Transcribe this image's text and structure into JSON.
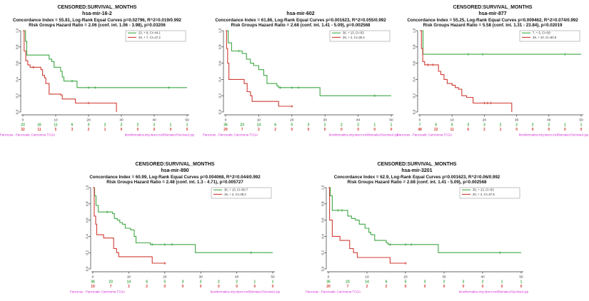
{
  "figure_name": "kaplan-meier-survival-panels",
  "colors": {
    "green": "#3fa845",
    "red": "#cf3d33",
    "magenta": "#d42ad4",
    "axis": "#333333",
    "legend_border": "#999999",
    "title_text": "#111111"
  },
  "footer": {
    "left": "Pancreas - Pancreatic Carcinoma TCGA",
    "right": "bioinformatica.mty.itesm.mx/Biomatec/SurvivaX.jsp"
  },
  "chart_data": [
    {
      "type": "line",
      "title_lines": [
        "CENSORED:SURVIVAL_MONTHS",
        "hsa-mir-16-2",
        "Concordance Index = 55.81, Log-Rank Equal Curves p=0.02796, R^2=0.019/0.992",
        "Risk Groups Hazard Ratio = 2.06 (conf. int. 1.06 - 3.98), p=0.03206"
      ],
      "xlabel": "",
      "ylabel": "",
      "xlim": [
        0,
        50
      ],
      "ylim": [
        0,
        1
      ],
      "x_ticks": [
        0,
        10,
        20,
        30,
        40,
        50
      ],
      "y_tick_labels": [
        "0.0",
        "0.2",
        "0.4",
        "0.6",
        "0.8",
        "1.0"
      ],
      "legend": [
        {
          "name": "low-risk-group",
          "label": "23, + 8, CI=44.1",
          "color": "green"
        },
        {
          "name": "high-risk-group",
          "label": "32, + 7, CI=47.2",
          "color": "red"
        }
      ],
      "series": [
        {
          "name": "low-risk-group",
          "color": "green",
          "steps": [
            [
              0,
              1.0
            ],
            [
              0.8,
              0.87
            ],
            [
              1.2,
              0.7
            ],
            [
              8,
              0.65
            ],
            [
              8.8,
              0.62
            ],
            [
              9.5,
              0.55
            ],
            [
              11.5,
              0.5
            ],
            [
              12,
              0.43
            ],
            [
              12.5,
              0.38
            ],
            [
              16.5,
              0.3
            ],
            [
              50,
              0.3
            ]
          ],
          "censors": [
            [
              15,
              0.38
            ],
            [
              20,
              0.3
            ],
            [
              22,
              0.3
            ],
            [
              44.5,
              0.3
            ]
          ]
        },
        {
          "name": "high-risk-group",
          "color": "red",
          "steps": [
            [
              0,
              1.0
            ],
            [
              0.4,
              0.75
            ],
            [
              0.9,
              0.63
            ],
            [
              1.5,
              0.58
            ],
            [
              2.2,
              0.55
            ],
            [
              5.5,
              0.52
            ],
            [
              6,
              0.45
            ],
            [
              6.6,
              0.42
            ],
            [
              7,
              0.35
            ],
            [
              8,
              0.22
            ],
            [
              11.5,
              0.21
            ],
            [
              12,
              0.16
            ],
            [
              16,
              0.11
            ],
            [
              28.5,
              0.0
            ]
          ],
          "censors": [
            [
              3.2,
              0.55
            ],
            [
              20,
              0.11
            ]
          ]
        }
      ],
      "at_risk": {
        "times": [
          0,
          5,
          10,
          15,
          20,
          25,
          30,
          35,
          40,
          45,
          50
        ],
        "green": [
          23,
          16,
          11,
          6,
          3,
          2,
          2,
          2,
          2,
          1,
          1
        ],
        "red": [
          32,
          11,
          5,
          3,
          2,
          1,
          0,
          0,
          0,
          0,
          0
        ]
      }
    },
    {
      "type": "line",
      "title_lines": [
        "hsa-mir-602",
        "Concordance Index = 61.86, Log-Rank Equal Curves p=0.001623, R^2=0.055/0.992",
        "Risk Groups Hazard Ratio = 2.68 (conf. int. 1.41 - 5.09), p=0.002568"
      ],
      "xlabel": "",
      "ylabel": "",
      "xlim": [
        0,
        50
      ],
      "ylim": [
        0,
        1
      ],
      "x_ticks": [
        0,
        10,
        20,
        30,
        40,
        50
      ],
      "y_tick_labels": [
        "0.0",
        "0.2",
        "0.4",
        "0.6",
        "0.8",
        "1.0"
      ],
      "legend": [
        {
          "name": "low-risk-group",
          "label": "36, + 13, CI=53",
          "color": "green"
        },
        {
          "name": "high-risk-group",
          "label": "29, + 2, CI=30.4",
          "color": "red"
        }
      ],
      "series": [
        {
          "name": "low-risk-group",
          "color": "green",
          "steps": [
            [
              0,
              1.0
            ],
            [
              0.8,
              0.85
            ],
            [
              1.8,
              0.75
            ],
            [
              5,
              0.72
            ],
            [
              6.3,
              0.65
            ],
            [
              7.5,
              0.6
            ],
            [
              8.5,
              0.57
            ],
            [
              10,
              0.52
            ],
            [
              11.5,
              0.45
            ],
            [
              12.5,
              0.35
            ],
            [
              15.5,
              0.32
            ],
            [
              16,
              0.3
            ],
            [
              28.5,
              0.2
            ],
            [
              50,
              0.2
            ]
          ],
          "censors": [
            [
              4,
              0.75
            ],
            [
              16.5,
              0.3
            ],
            [
              20,
              0.3
            ],
            [
              22,
              0.3
            ],
            [
              45,
              0.2
            ]
          ]
        },
        {
          "name": "high-risk-group",
          "color": "red",
          "steps": [
            [
              0,
              1.0
            ],
            [
              0.3,
              0.78
            ],
            [
              0.6,
              0.6
            ],
            [
              1,
              0.4
            ],
            [
              5.6,
              0.35
            ],
            [
              6.5,
              0.25
            ],
            [
              7.5,
              0.2
            ],
            [
              8,
              0.13
            ],
            [
              16,
              0.07
            ],
            [
              20,
              0.07
            ]
          ],
          "censors": [
            [
              20,
              0.07
            ]
          ]
        }
      ],
      "at_risk": {
        "times": [
          0,
          5,
          10,
          15,
          20,
          25,
          30,
          35,
          40,
          45,
          50
        ],
        "green": [
          36,
          23,
          14,
          6,
          5,
          3,
          2,
          2,
          2,
          1,
          1
        ],
        "red": [
          29,
          7,
          2,
          2,
          0,
          0,
          0,
          0,
          0,
          0,
          0
        ]
      }
    },
    {
      "type": "line",
      "title_lines": [
        "CENSORED:SURVIVAL_MONTHS",
        "hsa-mir-877",
        "Concordance Index = 55.25, Log-Rank Equal Curves p=0.009462, R^2=0.074/0.992",
        "Risk Groups Hazard Ratio = 5.58 (conf. int. 1.31 - 23.84), p=0.02019"
      ],
      "xlabel": "",
      "ylabel": "",
      "xlim": [
        0,
        50
      ],
      "ylim": [
        0,
        1
      ],
      "x_ticks": [
        0,
        10,
        20,
        30,
        40,
        50
      ],
      "y_tick_labels": [
        "0.0",
        "0.2",
        "0.4",
        "0.6",
        "0.8",
        "1.0"
      ],
      "legend": [
        {
          "name": "low-risk-group",
          "label": "7, + 5, CI=50",
          "color": "green"
        },
        {
          "name": "high-risk-group",
          "label": "48, + 10, CI=50.6",
          "color": "red"
        }
      ],
      "series": [
        {
          "name": "low-risk-group",
          "color": "green",
          "steps": [
            [
              0,
              1.0
            ],
            [
              1,
              0.71
            ],
            [
              50,
              0.71
            ]
          ],
          "censors": [
            [
              15,
              0.71
            ],
            [
              19.5,
              0.71
            ],
            [
              45,
              0.71
            ]
          ]
        },
        {
          "name": "high-risk-group",
          "color": "red",
          "steps": [
            [
              0,
              1.0
            ],
            [
              0.5,
              0.78
            ],
            [
              0.9,
              0.62
            ],
            [
              1.5,
              0.58
            ],
            [
              5.8,
              0.5
            ],
            [
              6.5,
              0.46
            ],
            [
              7.5,
              0.4
            ],
            [
              8.5,
              0.35
            ],
            [
              10,
              0.33
            ],
            [
              11,
              0.3
            ],
            [
              12,
              0.28
            ],
            [
              13,
              0.2
            ],
            [
              14.5,
              0.18
            ],
            [
              16.5,
              0.11
            ],
            [
              28.5,
              0.0
            ]
          ],
          "censors": [
            [
              2.5,
              0.58
            ],
            [
              4,
              0.58
            ],
            [
              20,
              0.11
            ],
            [
              21,
              0.11
            ],
            [
              22,
              0.11
            ]
          ]
        }
      ],
      "at_risk": {
        "times": [
          0,
          5,
          10,
          15,
          20,
          25,
          30,
          35,
          40,
          45,
          50
        ],
        "green": [
          7,
          5,
          5,
          3,
          3,
          2,
          2,
          2,
          2,
          1,
          1
        ],
        "red": [
          48,
          22,
          11,
          6,
          2,
          1,
          0,
          0,
          0,
          0,
          0
        ]
      }
    },
    {
      "type": "line",
      "title_lines": [
        "CENSORED:SURVIVAL_MONTHS",
        "hsa-mir-890",
        "Concordance Index = 60.99, Log-Rank Equal Curves p=0.004068, R^2=0.044/0.992",
        "Risk Groups Hazard Ratio = 2.48 (conf. int. 1.3 - 4.71), p=0.005727"
      ],
      "xlabel": "",
      "ylabel": "",
      "xlim": [
        0,
        50
      ],
      "ylim": [
        0,
        1
      ],
      "x_ticks": [
        0,
        10,
        20,
        30,
        40,
        50
      ],
      "y_tick_labels": [
        "0.0",
        "0.2",
        "0.4",
        "0.6",
        "0.8",
        "1.0"
      ],
      "legend": [
        {
          "name": "low-risk-group",
          "label": "36, + 13, CI=50.7",
          "color": "green"
        },
        {
          "name": "high-risk-group",
          "label": "19, + 2, CI=38.2",
          "color": "red"
        }
      ],
      "series": [
        {
          "name": "low-risk-group",
          "color": "green",
          "steps": [
            [
              0,
              1.0
            ],
            [
              0.5,
              0.9
            ],
            [
              0.9,
              0.78
            ],
            [
              1.5,
              0.7
            ],
            [
              5.5,
              0.68
            ],
            [
              6,
              0.62
            ],
            [
              6.8,
              0.6
            ],
            [
              7.5,
              0.57
            ],
            [
              8.2,
              0.55
            ],
            [
              9,
              0.5
            ],
            [
              10.5,
              0.48
            ],
            [
              11.5,
              0.4
            ],
            [
              12,
              0.32
            ],
            [
              16,
              0.3
            ],
            [
              28.5,
              0.2
            ],
            [
              50,
              0.2
            ]
          ],
          "censors": [
            [
              4,
              0.7
            ],
            [
              16.5,
              0.3
            ],
            [
              20,
              0.3
            ],
            [
              22,
              0.3
            ],
            [
              44,
              0.2
            ]
          ]
        },
        {
          "name": "high-risk-group",
          "color": "red",
          "steps": [
            [
              0,
              1.0
            ],
            [
              0.4,
              0.65
            ],
            [
              0.8,
              0.55
            ],
            [
              1.1,
              0.42
            ],
            [
              3,
              0.38
            ],
            [
              5.8,
              0.25
            ],
            [
              6.6,
              0.2
            ],
            [
              7.2,
              0.15
            ],
            [
              16.5,
              0.07
            ],
            [
              20,
              0.07
            ]
          ],
          "censors": [
            [
              20,
              0.07
            ]
          ]
        }
      ],
      "at_risk": {
        "times": [
          0,
          5,
          10,
          15,
          20,
          25,
          30,
          35,
          40,
          45,
          50
        ],
        "green": [
          36,
          23,
          14,
          6,
          5,
          3,
          2,
          2,
          2,
          1,
          1
        ],
        "red": [
          19,
          7,
          2,
          2,
          0,
          0,
          0,
          0,
          0,
          0,
          0
        ]
      }
    },
    {
      "type": "line",
      "title_lines": [
        "CENSORED:SURVIVAL_MONTHS",
        "hsa-mir-3201",
        "Concordance Index = 62.9, Log-Rank Equal Curves p=0.001623, R^2=0.06/0.992",
        "Risk Groups Hazard Ratio = 2.68 (conf. int. 1.41 - 5.09), p=0.002568"
      ],
      "xlabel": "",
      "ylabel": "",
      "xlim": [
        0,
        50
      ],
      "ylim": [
        0,
        1
      ],
      "x_ticks": [
        0,
        10,
        20,
        30,
        40,
        50
      ],
      "y_tick_labels": [
        "0.0",
        "0.2",
        "0.4",
        "0.6",
        "0.8",
        "1.0"
      ],
      "legend": [
        {
          "name": "low-risk-group",
          "label": "35, + 13, CI=53",
          "color": "green"
        },
        {
          "name": "high-risk-group",
          "label": "20, + 2, CI=37.5",
          "color": "red"
        }
      ],
      "series": [
        {
          "name": "low-risk-group",
          "color": "green",
          "steps": [
            [
              0,
              1.0
            ],
            [
              0.5,
              0.9
            ],
            [
              1,
              0.72
            ],
            [
              5,
              0.65
            ],
            [
              6,
              0.62
            ],
            [
              7,
              0.6
            ],
            [
              8,
              0.55
            ],
            [
              9.5,
              0.5
            ],
            [
              10.5,
              0.45
            ],
            [
              11,
              0.42
            ],
            [
              12,
              0.35
            ],
            [
              15,
              0.32
            ],
            [
              15.5,
              0.3
            ],
            [
              28.5,
              0.2
            ],
            [
              50,
              0.2
            ]
          ],
          "censors": [
            [
              2.5,
              0.72
            ],
            [
              3.5,
              0.72
            ],
            [
              16,
              0.3
            ],
            [
              20,
              0.3
            ],
            [
              21.5,
              0.3
            ],
            [
              44.5,
              0.2
            ]
          ]
        },
        {
          "name": "high-risk-group",
          "color": "red",
          "steps": [
            [
              0,
              1.0
            ],
            [
              0.3,
              0.6
            ],
            [
              1,
              0.4
            ],
            [
              3,
              0.35
            ],
            [
              5.5,
              0.25
            ],
            [
              6.5,
              0.2
            ],
            [
              7.5,
              0.14
            ],
            [
              16,
              0.07
            ],
            [
              20,
              0.07
            ]
          ],
          "censors": [
            [
              20,
              0.07
            ]
          ]
        }
      ],
      "at_risk": {
        "times": [
          0,
          5,
          10,
          15,
          20,
          25,
          30,
          35,
          40,
          45,
          50
        ],
        "green": [
          35,
          23,
          14,
          6,
          5,
          3,
          2,
          2,
          2,
          1,
          1
        ],
        "red": [
          20,
          7,
          2,
          2,
          0,
          0,
          0,
          0,
          0,
          0,
          0
        ]
      }
    }
  ]
}
